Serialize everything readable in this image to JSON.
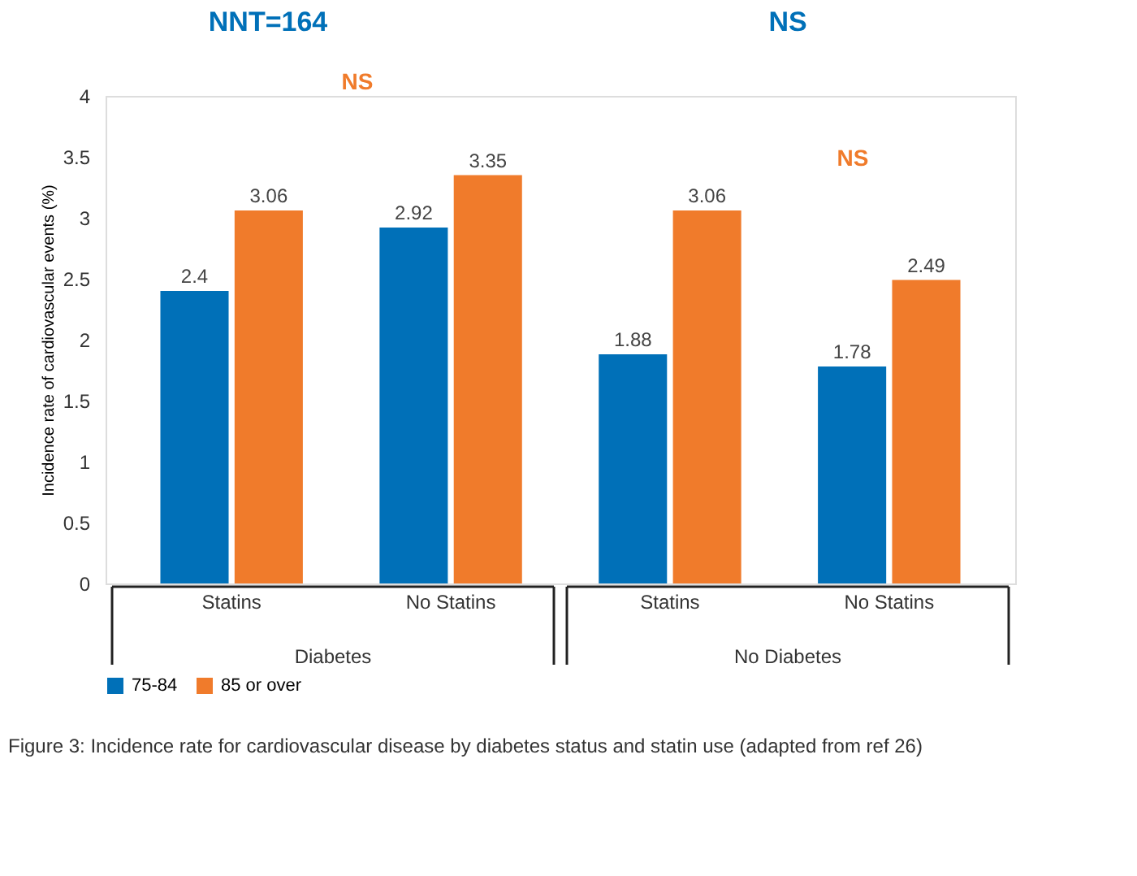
{
  "chart_data": {
    "type": "bar",
    "categories": [
      "Statins",
      "No Statins",
      "Statins",
      "No Statins"
    ],
    "series": [
      {
        "name": "75-84",
        "color": "#0070b8",
        "values": [
          2.4,
          2.92,
          1.88,
          1.78
        ]
      },
      {
        "name": "85 or over",
        "color": "#f07b2b",
        "values": [
          3.06,
          3.35,
          3.06,
          2.49
        ]
      }
    ],
    "ylabel": "Incidence rate of cardiovascular events (%)",
    "ylim": [
      0,
      4
    ],
    "yticks": [
      0,
      0.5,
      1,
      1.5,
      2,
      2.5,
      3,
      3.5,
      4
    ],
    "data_labels": true,
    "grid": false,
    "legend": "bottom",
    "annotations": [
      "NNT=164",
      "NS",
      "NS",
      "NS",
      "Diabetes",
      "No Diabetes",
      "Figure 3: Incidence rate for cardiovascular disease by diabetes status and statin use (adapted from ref 26)"
    ]
  }
}
